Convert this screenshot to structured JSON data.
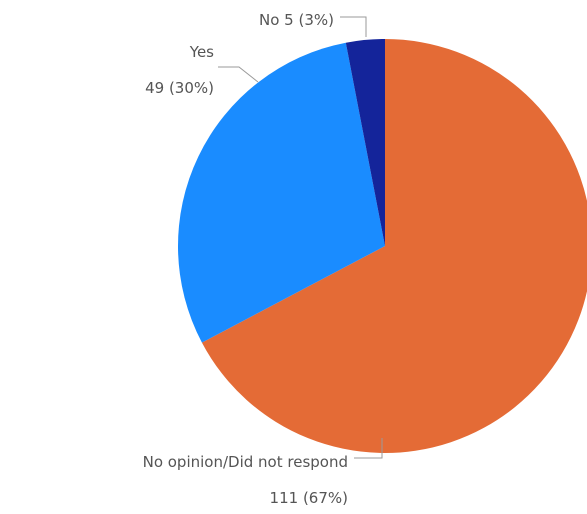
{
  "chart_data": {
    "type": "pie",
    "title": "",
    "slices": [
      {
        "label": "No opinion/Did not respond",
        "value": 111,
        "percent_label": "111 (67%)",
        "color": "#E46B36"
      },
      {
        "label": "Yes",
        "value": 49,
        "percent_label": "49 (30%)",
        "color": "#1A8CFF"
      },
      {
        "label": "No",
        "value": 5,
        "percent_label": "5 (3%)",
        "color": "#14249A"
      }
    ],
    "start": "12 o'clock, clockwise",
    "legend": "none; labels outside with leader lines"
  }
}
